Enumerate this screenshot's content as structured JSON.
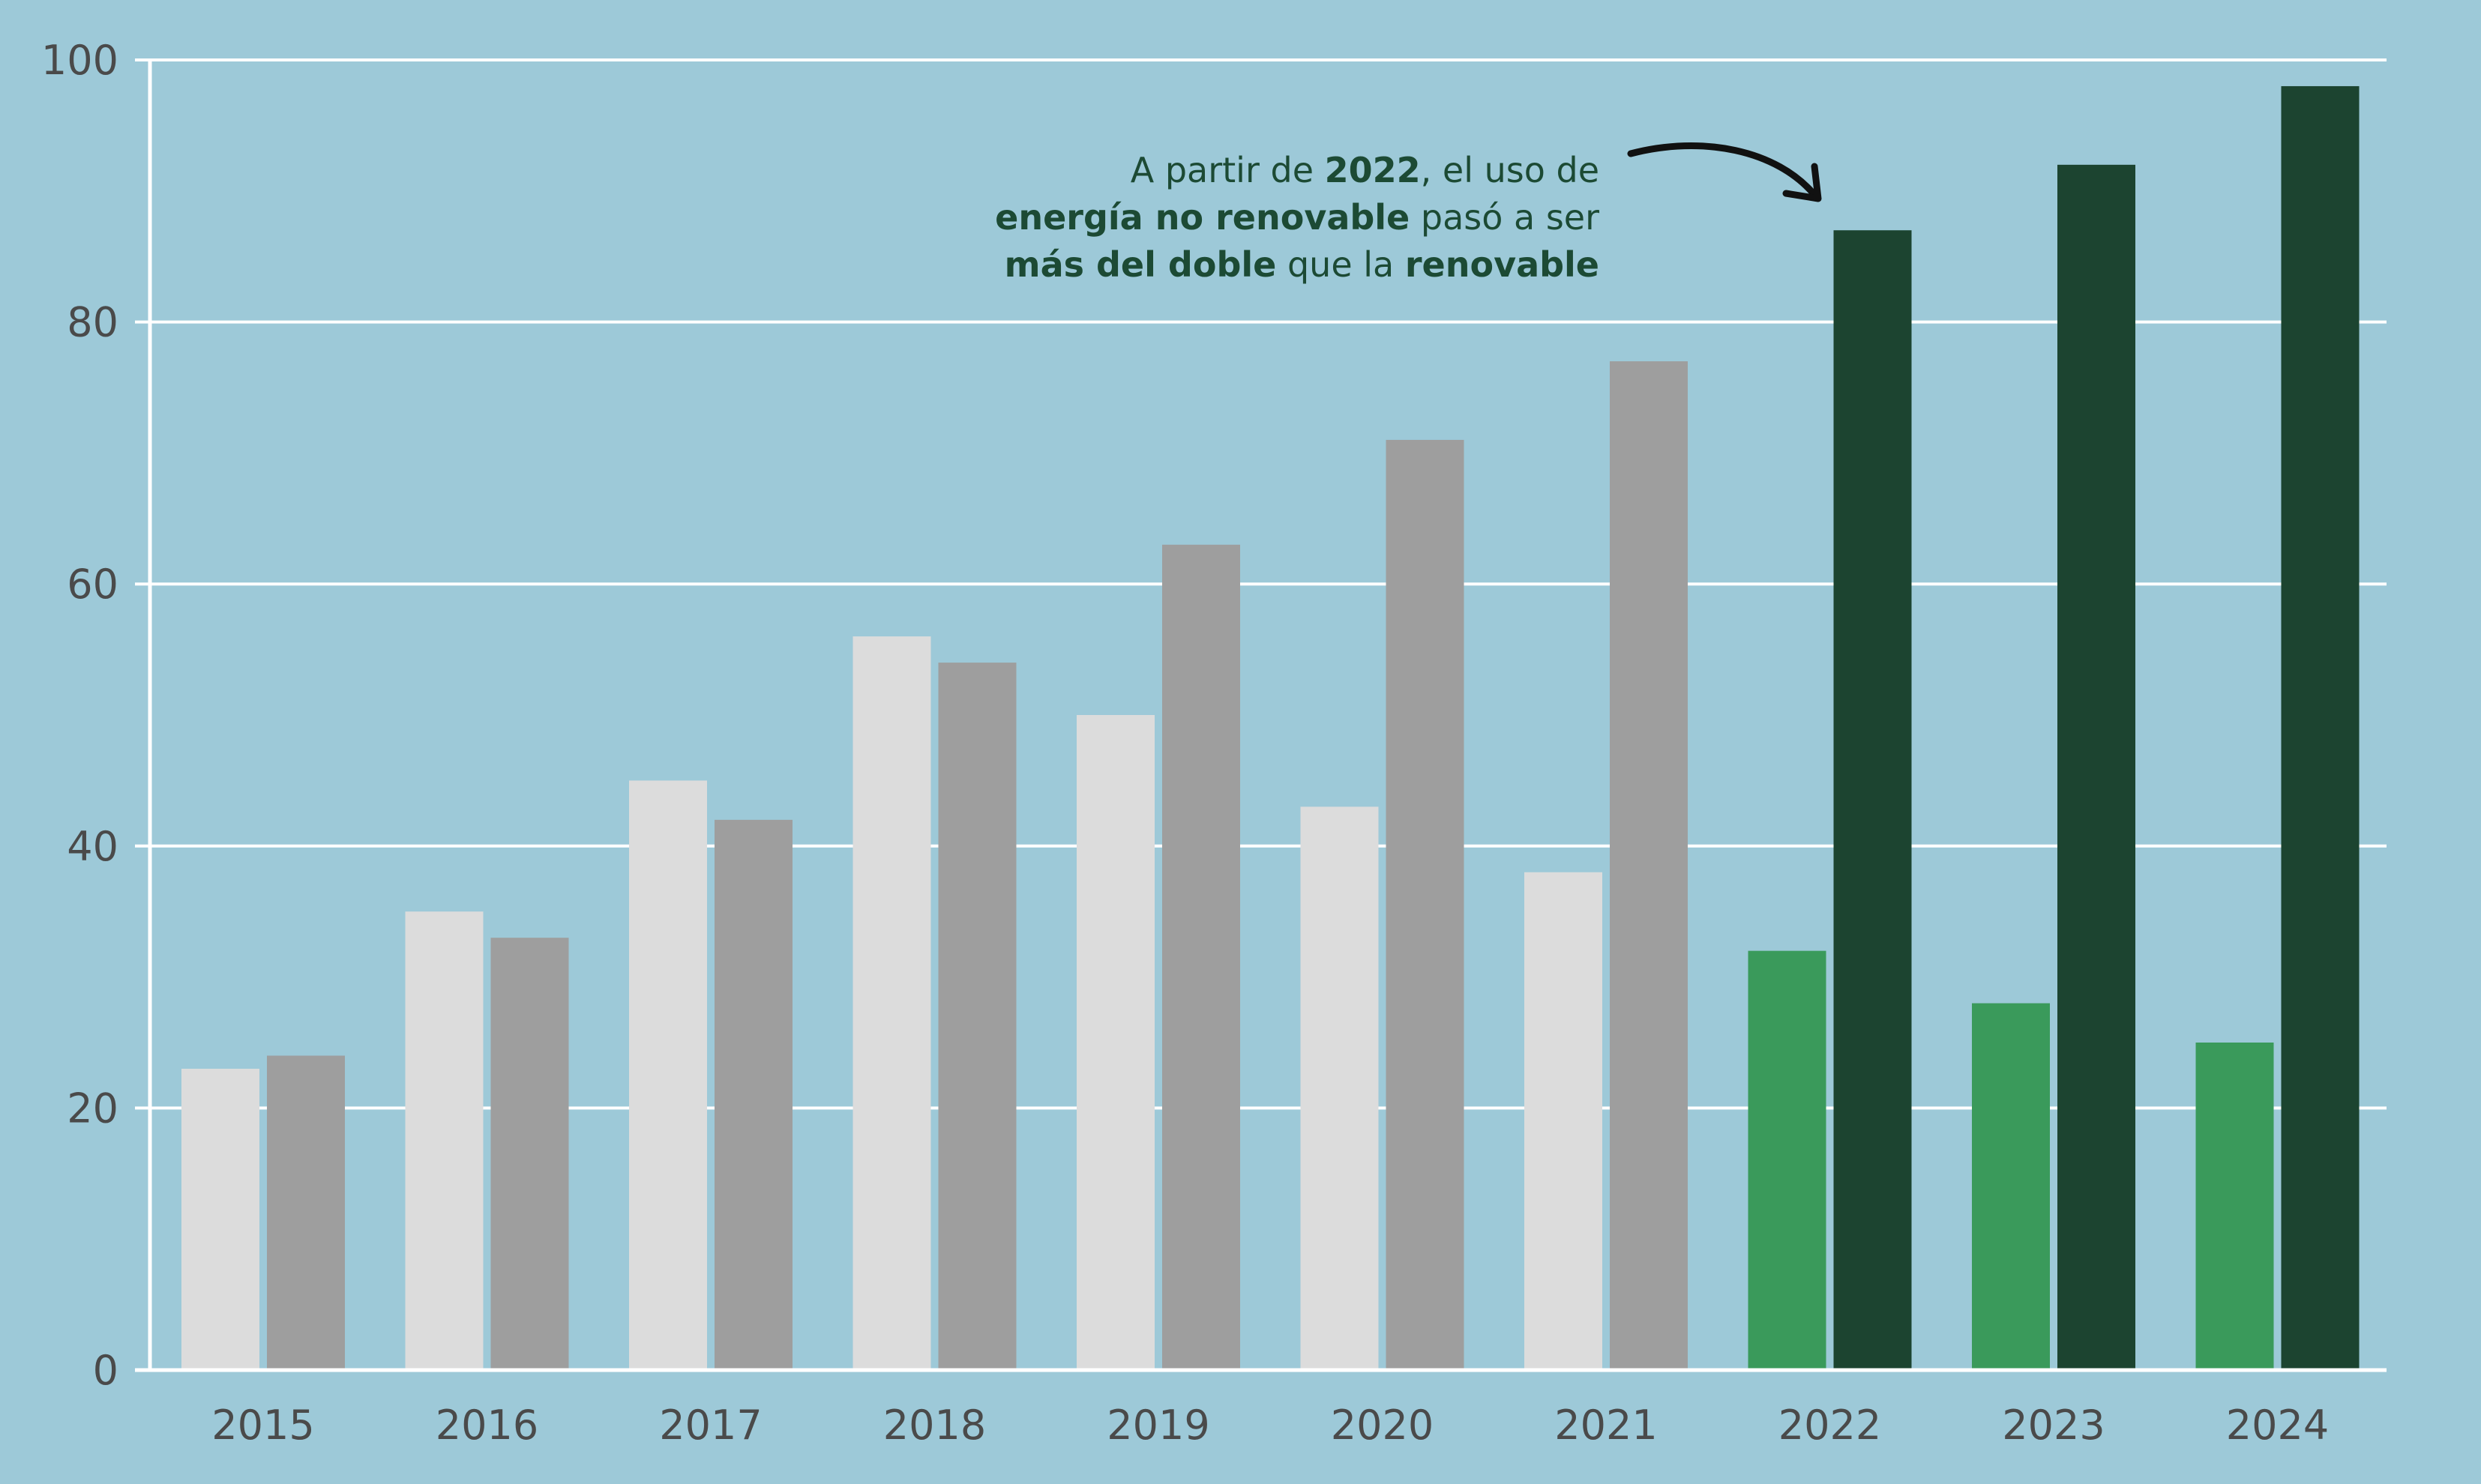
{
  "chart_data": {
    "type": "bar",
    "title": "",
    "xlabel": "",
    "ylabel": "",
    "ylim": [
      0,
      100
    ],
    "yticks": [
      0,
      20,
      40,
      60,
      80,
      100
    ],
    "grid": true,
    "categories": [
      "2015",
      "2016",
      "2017",
      "2018",
      "2019",
      "2020",
      "2021",
      "2022",
      "2023",
      "2024"
    ],
    "series": [
      {
        "values": [
          23,
          35,
          45,
          56,
          50,
          43,
          38,
          32,
          28,
          25
        ],
        "colors": [
          "#dcdcdc",
          "#dcdcdc",
          "#dcdcdc",
          "#dcdcdc",
          "#dcdcdc",
          "#dcdcdc",
          "#dcdcdc",
          "#3a9a5b",
          "#3a9a5b",
          "#3a9a5b"
        ]
      },
      {
        "values": [
          24,
          33,
          42,
          54,
          63,
          71,
          77,
          87,
          92,
          98
        ],
        "colors": [
          "#9e9e9e",
          "#9e9e9e",
          "#9e9e9e",
          "#9e9e9e",
          "#9e9e9e",
          "#9e9e9e",
          "#9e9e9e",
          "#1c4430",
          "#1c4430",
          "#1c4430"
        ]
      }
    ],
    "annotation": {
      "line1": [
        "A partir de ",
        "2022",
        ", el uso de"
      ],
      "line2": [
        "energía no renovable",
        " pasó a ser"
      ],
      "line3": [
        "más del doble",
        " que la ",
        "renovable"
      ]
    }
  },
  "colors": {
    "background": "#9dc9d8",
    "grid": "#ffffff",
    "axis": "#ffffff",
    "tick_text": "#4a4a4a",
    "annotation_text": "#1c4a34",
    "arrow": "#111111"
  }
}
